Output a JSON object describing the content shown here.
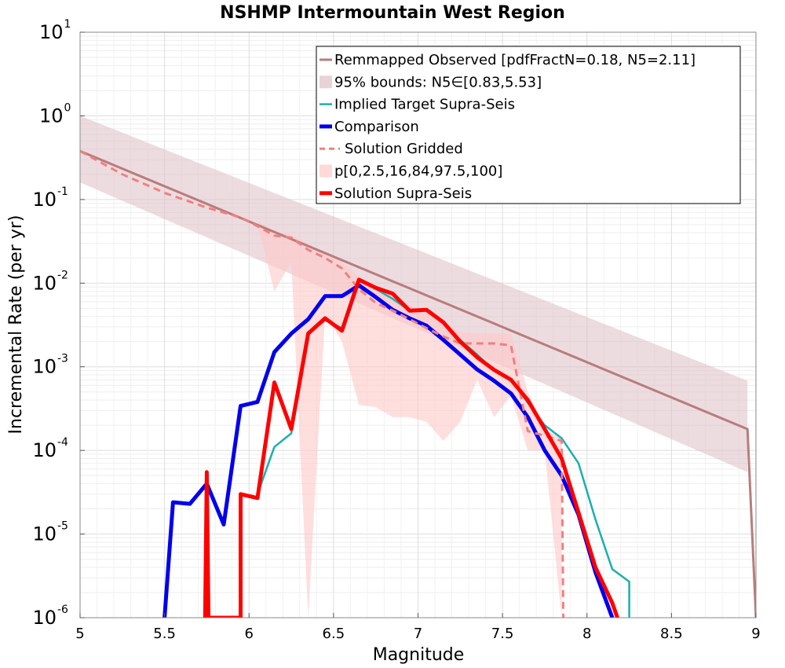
{
  "chart_data": {
    "type": "line",
    "title": "NSHMP Intermountain West Region",
    "xlabel": "Magnitude",
    "ylabel": "Incremental Rate (per yr)",
    "xlim": [
      5,
      9
    ],
    "ylim": [
      1e-06,
      10
    ],
    "yscale": "log",
    "grid": true,
    "legend_position": "top-right",
    "x_ticks": [
      "5",
      "5.5",
      "6",
      "6.5",
      "7",
      "7.5",
      "8",
      "8.5",
      "9"
    ],
    "y_ticks": [
      {
        "base": "10",
        "exp": "1"
      },
      {
        "base": "10",
        "exp": "0"
      },
      {
        "base": "10",
        "exp": "-1"
      },
      {
        "base": "10",
        "exp": "-2"
      },
      {
        "base": "10",
        "exp": "-3"
      },
      {
        "base": "10",
        "exp": "-4"
      },
      {
        "base": "10",
        "exp": "-5"
      },
      {
        "base": "10",
        "exp": "-6"
      }
    ],
    "series": [
      {
        "name": "Remmapped Observed [pdfFractN=0.18, N5=2.11]",
        "kind": "line",
        "color": "#b87c7c",
        "width": 3,
        "x": [
          5.0,
          8.95,
          9.0
        ],
        "y": [
          0.38,
          0.00018,
          1e-06
        ]
      },
      {
        "name": "95% bounds: N5∈[0.83,5.53]",
        "kind": "band",
        "color": "#dec0c4",
        "x": [
          5.0,
          8.95
        ],
        "lower": [
          0.16,
          5.5e-05
        ],
        "upper": [
          1.0,
          0.00068
        ]
      },
      {
        "name": "Implied Target Supra-Seis",
        "kind": "line",
        "color": "#1aafaf",
        "width": 2.5,
        "x": [
          6.05,
          6.15,
          6.25,
          6.35,
          6.45,
          6.55,
          6.65,
          6.75,
          6.85,
          6.95,
          7.05,
          7.15,
          7.25,
          7.35,
          7.45,
          7.55,
          7.65,
          7.75,
          7.85,
          7.95,
          8.05,
          8.15,
          8.25,
          8.25
        ],
        "y": [
          3e-05,
          0.00011,
          0.00016,
          0.0025,
          0.0036,
          0.0029,
          0.011,
          0.0085,
          0.0065,
          0.0047,
          0.0048,
          0.0033,
          0.0021,
          0.0014,
          0.0009,
          0.0007,
          0.00037,
          0.0002,
          0.00014,
          7e-05,
          1.5e-05,
          3.8e-06,
          2.7e-06,
          1e-06
        ]
      },
      {
        "name": "Comparison",
        "kind": "line",
        "color": "#0000ee",
        "width": 5,
        "x": [
          5.5,
          5.55,
          5.65,
          5.75,
          5.85,
          5.95,
          6.05,
          6.15,
          6.25,
          6.35,
          6.45,
          6.55,
          6.65,
          6.75,
          6.85,
          6.95,
          7.05,
          7.15,
          7.25,
          7.35,
          7.45,
          7.55,
          7.65,
          7.75,
          7.85,
          7.95,
          8.05,
          8.15
        ],
        "y": [
          1e-06,
          2.4e-05,
          2.3e-05,
          4e-05,
          1.3e-05,
          0.00034,
          0.00038,
          0.0015,
          0.0025,
          0.0037,
          0.007,
          0.007,
          0.0094,
          0.0068,
          0.0048,
          0.0038,
          0.0031,
          0.0021,
          0.0014,
          0.00093,
          0.00068,
          0.00048,
          0.00025,
          0.0001,
          5e-05,
          1.7e-05,
          3.5e-06,
          1e-06
        ]
      },
      {
        "name": "Solution Gridded",
        "kind": "dashed",
        "color": "#f08080",
        "width": 3,
        "x": [
          5.0,
          5.25,
          5.5,
          5.75,
          5.95,
          6.05,
          6.15,
          6.25,
          6.35,
          6.45,
          6.55,
          6.65,
          6.75,
          6.85,
          6.95,
          7.05,
          7.15,
          7.25,
          7.35,
          7.45,
          7.55,
          7.65,
          7.75,
          7.85,
          7.86
        ],
        "y": [
          0.38,
          0.2,
          0.12,
          0.08,
          0.061,
          0.048,
          0.037,
          0.035,
          0.025,
          0.02,
          0.015,
          0.0085,
          0.0058,
          0.0047,
          0.0037,
          0.0029,
          0.0023,
          0.0019,
          0.0019,
          0.0019,
          0.0018,
          0.00017,
          0.00015,
          0.00013,
          1e-06
        ]
      },
      {
        "name": "p[0,2.5,16,84,97.5,100]",
        "kind": "band",
        "color": "#ffc8c8",
        "x": [
          6.05,
          6.15,
          6.25,
          6.35,
          6.45,
          6.55,
          6.65,
          6.75,
          6.85,
          6.95,
          7.05,
          7.15,
          7.25,
          7.35,
          7.45,
          7.55,
          7.65,
          7.75,
          7.85
        ],
        "lower": [
          0.05,
          0.008,
          0.018,
          1e-06,
          0.0042,
          0.002,
          0.00035,
          0.00033,
          0.00025,
          0.00025,
          0.00022,
          0.00013,
          0.00022,
          0.0007,
          0.00025,
          0.00045,
          0.0001,
          0.0001,
          1e-06
        ],
        "upper": [
          0.055,
          0.042,
          0.038,
          0.03,
          0.022,
          0.018,
          0.012,
          0.009,
          0.007,
          0.0055,
          0.0045,
          0.0035,
          0.0026,
          0.0025,
          0.0025,
          0.0025,
          0.0005,
          0.00018,
          0.00014
        ]
      },
      {
        "name": "Solution Supra-Seis",
        "kind": "line",
        "color": "#ff0000",
        "width": 5,
        "x": [
          5.74,
          5.75,
          5.76,
          5.95,
          5.95,
          6.05,
          6.15,
          6.25,
          6.35,
          6.45,
          6.55,
          6.65,
          6.75,
          6.85,
          6.95,
          7.05,
          7.15,
          7.25,
          7.35,
          7.45,
          7.55,
          7.65,
          7.75,
          7.85,
          7.95,
          8.05,
          8.15,
          8.18
        ],
        "y": [
          1e-06,
          5.5e-05,
          1e-06,
          1e-06,
          3e-05,
          2.7e-05,
          0.00065,
          0.00018,
          0.0025,
          0.0038,
          0.0027,
          0.011,
          0.0088,
          0.0075,
          0.0047,
          0.0048,
          0.0034,
          0.002,
          0.0013,
          0.00092,
          0.0007,
          0.0004,
          0.00018,
          8e-05,
          1.8e-05,
          4e-06,
          1.5e-06,
          1e-06
        ]
      }
    ]
  }
}
